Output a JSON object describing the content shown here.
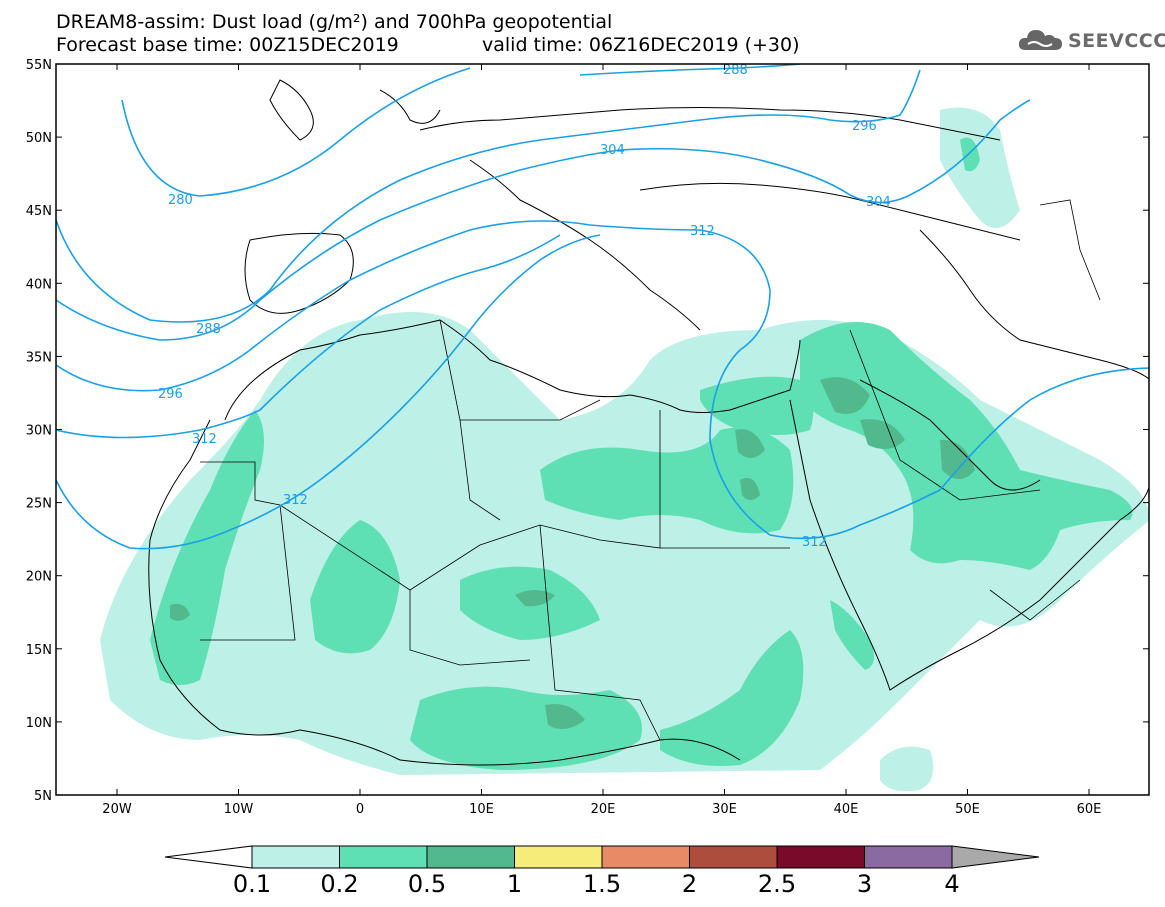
{
  "header": {
    "title_line1": "DREAM8-assim: Dust load (g/m²) and 700hPa geopotential",
    "title_line2": "Forecast base time: 00Z15DEC2019",
    "valid_time": "valid time: 06Z16DEC2019 (+30)"
  },
  "logo": {
    "text": "SEEVCCC",
    "icon": "cloud-logo-icon"
  },
  "axes": {
    "lat_ticks": [
      "55N",
      "50N",
      "45N",
      "40N",
      "35N",
      "30N",
      "25N",
      "20N",
      "15N",
      "10N",
      "5N"
    ],
    "lon_ticks": [
      "20W",
      "10W",
      "0",
      "10E",
      "20E",
      "30E",
      "40E",
      "50E",
      "60E"
    ]
  },
  "contours": {
    "labels": [
      "288",
      "296",
      "304",
      "312",
      "280",
      "288",
      "296",
      "304",
      "312",
      "312",
      "312"
    ]
  },
  "colorbar": {
    "labels": [
      "0.1",
      "0.2",
      "0.5",
      "1",
      "1.5",
      "2",
      "2.5",
      "3",
      "4"
    ],
    "colors": [
      "#bdf0e6",
      "#5fe0b4",
      "#52b98f",
      "#f6ec7a",
      "#e98a66",
      "#ad4d3e",
      "#7a0a2a",
      "#8a6aa0",
      "#a9a9a9"
    ]
  }
}
